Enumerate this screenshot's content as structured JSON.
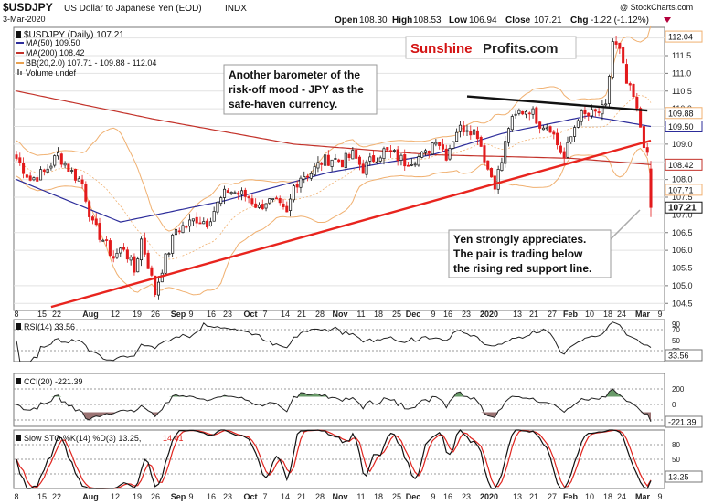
{
  "header": {
    "symbol": "$USDJPY",
    "name": "US Dollar to Japanese Yen (EOD)",
    "exchange": "INDX",
    "date": "3-Mar-2020",
    "open_label": "Open",
    "open": "108.30",
    "high_label": "High",
    "high": "108.53",
    "low_label": "Low",
    "low": "106.94",
    "close_label": "Close",
    "close": "107.21",
    "chg_label": "Chg",
    "chg": "-1.22 (-1.12%)",
    "copyright": "@ StockCharts.com"
  },
  "brand": {
    "part1": "Sunshine",
    "part2": "Profits.com"
  },
  "legend": {
    "main": "$USDJPY (Daily) 107.21",
    "ma50": "MA(50) 109.50",
    "ma200": "MA(200) 108.42",
    "bb": "BB(20,2.0) 107.71 - 109.88 - 112.04",
    "volume": "Volume undef"
  },
  "annotations": {
    "top_line1": "Another barometer of the",
    "top_line2": "risk-off mood - JPY as the",
    "top_line3": "safe-haven currency.",
    "bottom_line1": "Yen strongly appreciates.",
    "bottom_line2": "The pair is trading below",
    "bottom_line3": "the rising red support line."
  },
  "price_axis": {
    "ticks": [
      "112.0",
      "111.5",
      "111.0",
      "110.5",
      "110.0",
      "109.5",
      "109.0",
      "108.5",
      "108.0",
      "107.5",
      "107.0",
      "106.5",
      "106.0",
      "105.5",
      "105.0",
      "104.5"
    ],
    "tags": [
      "112.04",
      "109.88",
      "109.50",
      "108.42",
      "107.71",
      "107.21"
    ]
  },
  "x_axis": {
    "labels": [
      "8",
      "15",
      "22",
      "Aug",
      "12",
      "19",
      "26",
      "Sep",
      "9",
      "16",
      "23",
      "Oct",
      "7",
      "14",
      "21",
      "28",
      "Nov",
      "11",
      "18",
      "25",
      "Dec",
      "9",
      "16",
      "23",
      "2020",
      "13",
      "21",
      "27",
      "Feb",
      "10",
      "18",
      "24",
      "Mar",
      "9"
    ]
  },
  "rsi": {
    "label": "RSI(14) 33.56",
    "ticks": [
      "90",
      "70",
      "50",
      "30",
      "10"
    ],
    "tag": "33.56"
  },
  "cci": {
    "label": "CCI(20) -221.39",
    "ticks": [
      "200",
      "0",
      "-200"
    ],
    "tag": "-221.39"
  },
  "sto": {
    "label_k": "Slow STO %K(14) %D(3) 13.25,",
    "label_d": "14.41",
    "ticks": [
      "80",
      "50",
      "20"
    ],
    "tag": "13.25"
  },
  "colors": {
    "candle_up": "#111111",
    "candle_down": "#e31a1c",
    "ma50": "#2c2c9a",
    "ma200": "#c3322a",
    "bb": "#f0b070",
    "support": "#e8241e",
    "resistance": "#111111",
    "cci_fill_pos": "#4f8a4f",
    "cci_fill_neg": "#8a5a5a"
  },
  "chart_data": {
    "type": "candlestick",
    "title": "$USDJPY (Daily) 107.21",
    "ylim": [
      104.3,
      112.3
    ],
    "last_bar": {
      "open": 108.3,
      "high": 108.53,
      "low": 106.94,
      "close": 107.21
    },
    "key_path": [
      [
        0,
        108.6
      ],
      [
        4,
        108.0
      ],
      [
        8,
        108.2
      ],
      [
        12,
        108.7
      ],
      [
        16,
        108.2
      ],
      [
        19,
        107.9
      ],
      [
        22,
        106.7
      ],
      [
        25,
        106.3
      ],
      [
        28,
        105.8
      ],
      [
        31,
        106.1
      ],
      [
        34,
        105.4
      ],
      [
        36,
        106.3
      ],
      [
        38,
        105.6
      ],
      [
        40,
        104.8
      ],
      [
        42,
        105.5
      ],
      [
        44,
        106.0
      ],
      [
        46,
        106.6
      ],
      [
        49,
        106.7
      ],
      [
        52,
        106.9
      ],
      [
        55,
        106.8
      ],
      [
        58,
        107.3
      ],
      [
        61,
        107.7
      ],
      [
        64,
        107.6
      ],
      [
        67,
        107.5
      ],
      [
        70,
        107.2
      ],
      [
        72,
        107.4
      ],
      [
        75,
        107.3
      ],
      [
        78,
        107.0
      ],
      [
        80,
        107.8
      ],
      [
        82,
        108.1
      ],
      [
        85,
        108.2
      ],
      [
        88,
        108.5
      ],
      [
        91,
        108.6
      ],
      [
        94,
        108.5
      ],
      [
        97,
        108.7
      ],
      [
        100,
        108.3
      ],
      [
        103,
        108.6
      ],
      [
        106,
        108.8
      ],
      [
        109,
        108.7
      ],
      [
        112,
        108.5
      ],
      [
        115,
        108.6
      ],
      [
        118,
        108.7
      ],
      [
        121,
        109.2
      ],
      [
        124,
        108.7
      ],
      [
        127,
        109.4
      ],
      [
        130,
        109.5
      ],
      [
        133,
        109.3
      ],
      [
        136,
        108.3
      ],
      [
        138,
        107.9
      ],
      [
        140,
        108.5
      ],
      [
        142,
        109.5
      ],
      [
        145,
        109.9
      ],
      [
        148,
        110.0
      ],
      [
        151,
        109.6
      ],
      [
        154,
        109.5
      ],
      [
        156,
        109.0
      ],
      [
        158,
        108.6
      ],
      [
        160,
        109.2
      ],
      [
        162,
        109.8
      ],
      [
        165,
        109.8
      ],
      [
        168,
        109.9
      ],
      [
        170,
        110.0
      ],
      [
        172,
        111.9
      ],
      [
        174,
        111.6
      ],
      [
        176,
        110.7
      ],
      [
        178,
        110.3
      ],
      [
        180,
        109.5
      ],
      [
        182,
        108.6
      ],
      [
        183,
        107.2
      ]
    ],
    "ma50_path": [
      [
        0,
        108.0
      ],
      [
        30,
        106.8
      ],
      [
        60,
        107.4
      ],
      [
        90,
        108.2
      ],
      [
        120,
        108.7
      ],
      [
        140,
        109.3
      ],
      [
        165,
        109.8
      ],
      [
        183,
        109.5
      ]
    ],
    "ma200_path": [
      [
        0,
        110.5
      ],
      [
        40,
        109.7
      ],
      [
        80,
        109.0
      ],
      [
        120,
        108.7
      ],
      [
        160,
        108.6
      ],
      [
        183,
        108.42
      ]
    ],
    "support_line": [
      [
        10,
        104.4
      ],
      [
        183,
        109.1
      ]
    ],
    "resistance_line": [
      [
        130,
        110.35
      ],
      [
        182,
        109.95
      ]
    ],
    "rsi": {
      "ylim": [
        0,
        100
      ],
      "last": 33.56
    },
    "cci": {
      "ylim": [
        -300,
        300
      ],
      "last": -221.39
    },
    "sto": {
      "ylim": [
        0,
        100
      ],
      "k_last": 13.25,
      "d_last": 14.41
    }
  }
}
